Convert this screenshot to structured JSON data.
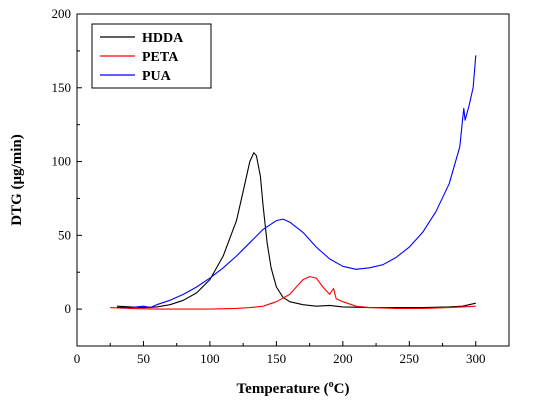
{
  "chart_data": {
    "type": "line",
    "xlabel": "Temperature (",
    "xlabel_sup": "o",
    "xlabel_unit": "C)",
    "ylabel": "DTG (μg/min)",
    "xlim": [
      0,
      325
    ],
    "ylim": [
      -25,
      200
    ],
    "xticks": [
      "0",
      "50",
      "100",
      "150",
      "200",
      "250",
      "300"
    ],
    "yticks": [
      "0",
      "50",
      "100",
      "150",
      "200"
    ],
    "legend_position": "top-left",
    "grid": false,
    "series": [
      {
        "name": "HDDA",
        "color": "#000000",
        "points": [
          [
            30,
            2
          ],
          [
            40,
            1.5
          ],
          [
            50,
            1
          ],
          [
            60,
            1.5
          ],
          [
            70,
            3
          ],
          [
            80,
            6
          ],
          [
            90,
            11
          ],
          [
            100,
            20
          ],
          [
            110,
            36
          ],
          [
            120,
            60
          ],
          [
            125,
            80
          ],
          [
            130,
            100
          ],
          [
            133,
            106
          ],
          [
            135,
            104
          ],
          [
            138,
            90
          ],
          [
            140,
            70
          ],
          [
            143,
            45
          ],
          [
            146,
            28
          ],
          [
            150,
            15
          ],
          [
            155,
            8
          ],
          [
            160,
            5
          ],
          [
            170,
            3
          ],
          [
            180,
            2
          ],
          [
            190,
            2.5
          ],
          [
            200,
            1.5
          ],
          [
            220,
            1
          ],
          [
            240,
            1
          ],
          [
            260,
            1
          ],
          [
            280,
            1.5
          ],
          [
            290,
            2
          ],
          [
            300,
            4
          ]
        ]
      },
      {
        "name": "PETA",
        "color": "#ff0000",
        "points": [
          [
            25,
            1
          ],
          [
            40,
            0.5
          ],
          [
            60,
            0
          ],
          [
            80,
            0
          ],
          [
            100,
            0
          ],
          [
            120,
            0.5
          ],
          [
            130,
            1
          ],
          [
            140,
            2
          ],
          [
            150,
            5
          ],
          [
            160,
            10
          ],
          [
            165,
            15
          ],
          [
            170,
            20
          ],
          [
            175,
            22
          ],
          [
            180,
            21
          ],
          [
            185,
            15
          ],
          [
            190,
            10
          ],
          [
            193,
            14
          ],
          [
            195,
            7
          ],
          [
            200,
            5
          ],
          [
            210,
            2
          ],
          [
            220,
            1
          ],
          [
            240,
            0.5
          ],
          [
            260,
            0.5
          ],
          [
            280,
            1
          ],
          [
            290,
            1.5
          ],
          [
            300,
            2
          ]
        ]
      },
      {
        "name": "PUA",
        "color": "#0000ff",
        "points": [
          [
            30,
            1
          ],
          [
            40,
            1
          ],
          [
            50,
            2
          ],
          [
            55,
            1
          ],
          [
            60,
            3
          ],
          [
            70,
            6
          ],
          [
            80,
            10
          ],
          [
            90,
            15
          ],
          [
            100,
            21
          ],
          [
            110,
            28
          ],
          [
            120,
            36
          ],
          [
            130,
            45
          ],
          [
            140,
            54
          ],
          [
            150,
            60
          ],
          [
            155,
            61
          ],
          [
            160,
            59
          ],
          [
            170,
            52
          ],
          [
            180,
            42
          ],
          [
            190,
            34
          ],
          [
            200,
            29
          ],
          [
            210,
            27
          ],
          [
            220,
            28
          ],
          [
            230,
            30
          ],
          [
            240,
            35
          ],
          [
            250,
            42
          ],
          [
            260,
            52
          ],
          [
            270,
            66
          ],
          [
            280,
            85
          ],
          [
            288,
            110
          ],
          [
            290,
            128
          ],
          [
            291,
            136
          ],
          [
            292,
            128
          ],
          [
            295,
            138
          ],
          [
            298,
            150
          ],
          [
            300,
            172
          ]
        ]
      }
    ]
  }
}
